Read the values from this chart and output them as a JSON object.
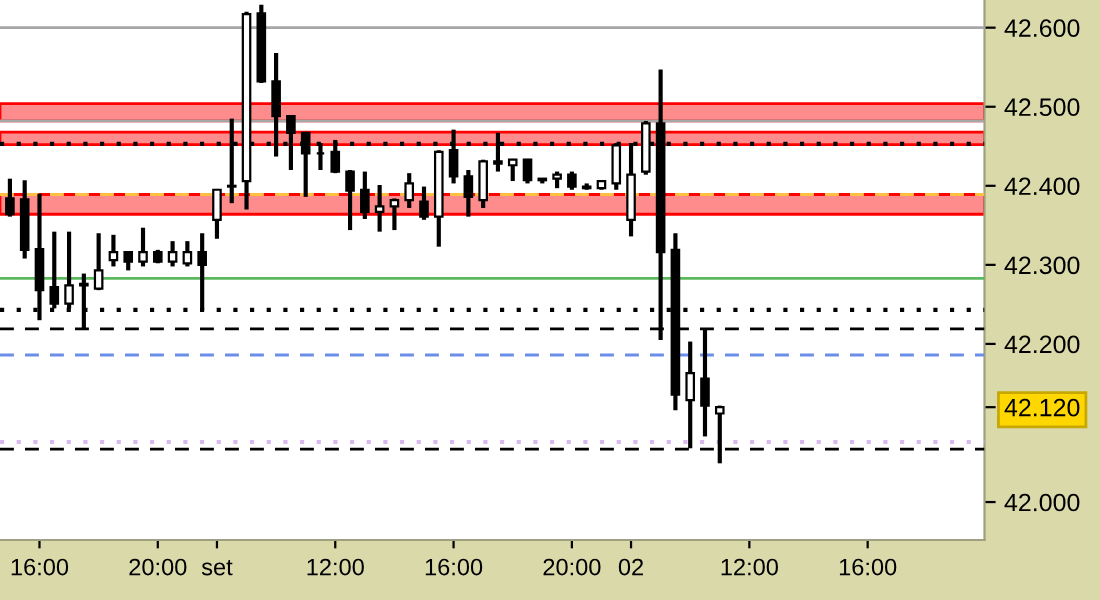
{
  "chart_data": {
    "type": "candlestick",
    "categories": [
      null,
      null,
      "16:00",
      null,
      null,
      null,
      null,
      null,
      null,
      null,
      "20:00",
      null,
      null,
      null,
      "set",
      null,
      null,
      null,
      null,
      null,
      null,
      null,
      "12:00",
      null,
      null,
      null,
      null,
      null,
      null,
      null,
      "16:00",
      null,
      null,
      null,
      null,
      null,
      null,
      null,
      "20:00",
      null,
      null,
      null,
      "02",
      null,
      null,
      null,
      null,
      null,
      null,
      null,
      "12:00",
      null,
      null,
      null,
      null,
      null,
      null,
      null,
      "16:00",
      null,
      null,
      null,
      null,
      null,
      null,
      null
    ],
    "ohlc": [
      [
        42.384,
        42.409,
        42.361,
        42.364
      ],
      [
        42.383,
        42.407,
        42.308,
        42.319
      ],
      [
        42.32,
        42.39,
        42.23,
        42.268
      ],
      [
        42.272,
        42.342,
        42.245,
        42.251
      ],
      [
        42.251,
        42.342,
        42.245,
        42.274
      ],
      [
        42.276,
        42.289,
        42.219,
        42.274
      ],
      [
        42.27,
        42.34,
        42.268,
        42.293
      ],
      [
        42.306,
        42.338,
        42.298,
        42.316
      ],
      [
        42.316,
        42.316,
        42.293,
        42.304
      ],
      [
        42.304,
        42.347,
        42.298,
        42.316
      ],
      [
        42.316,
        42.319,
        42.302,
        42.304
      ],
      [
        42.304,
        42.33,
        42.298,
        42.316
      ],
      [
        42.302,
        42.33,
        42.298,
        42.316
      ],
      [
        42.316,
        42.34,
        42.243,
        42.3
      ],
      [
        42.357,
        42.396,
        42.333,
        42.395
      ],
      [
        42.399,
        42.485,
        42.378,
        42.4
      ],
      [
        42.406,
        42.62,
        42.37,
        42.617
      ],
      [
        42.618,
        42.629,
        42.53,
        42.532
      ],
      [
        42.532,
        42.568,
        42.437,
        42.488
      ],
      [
        42.488,
        42.488,
        42.42,
        42.467
      ],
      [
        42.467,
        42.467,
        42.386,
        42.441
      ],
      [
        42.441,
        42.454,
        42.42,
        42.441
      ],
      [
        42.443,
        42.458,
        42.416,
        42.418
      ],
      [
        42.418,
        42.42,
        42.344,
        42.394
      ],
      [
        42.395,
        42.418,
        42.358,
        42.367
      ],
      [
        42.367,
        42.401,
        42.342,
        42.374
      ],
      [
        42.374,
        42.384,
        42.344,
        42.382
      ],
      [
        42.382,
        42.416,
        42.372,
        42.403
      ],
      [
        42.38,
        42.399,
        42.357,
        42.361
      ],
      [
        42.361,
        42.445,
        42.323,
        42.443
      ],
      [
        42.445,
        42.471,
        42.403,
        42.412
      ],
      [
        42.412,
        42.42,
        42.361,
        42.386
      ],
      [
        42.382,
        42.433,
        42.372,
        42.431
      ],
      [
        42.431,
        42.467,
        42.418,
        42.428
      ],
      [
        42.426,
        42.434,
        42.406,
        42.433
      ],
      [
        42.433,
        42.434,
        42.403,
        42.407
      ],
      [
        42.407,
        42.409,
        42.403,
        42.409
      ],
      [
        42.409,
        42.418,
        42.397,
        42.414
      ],
      [
        42.414,
        42.418,
        42.395,
        42.399
      ],
      [
        42.399,
        42.403,
        42.395,
        42.397
      ],
      [
        42.397,
        42.407,
        42.395,
        42.406
      ],
      [
        42.403,
        42.454,
        42.395,
        42.451
      ],
      [
        42.357,
        42.454,
        42.336,
        42.414
      ],
      [
        42.418,
        42.482,
        42.414,
        42.479
      ],
      [
        42.479,
        42.547,
        42.205,
        42.316
      ],
      [
        42.319,
        42.34,
        42.116,
        42.136
      ],
      [
        42.129,
        42.203,
        42.068,
        42.163
      ],
      [
        42.156,
        42.22,
        42.083,
        42.122
      ],
      [
        42.112,
        42.122,
        42.049,
        42.12
      ],
      null,
      null,
      null,
      null,
      null,
      null,
      null,
      null,
      null,
      null,
      null,
      null,
      null,
      null,
      null,
      null,
      null
    ],
    "ylim": [
      41.952,
      42.635
    ],
    "yticks": [
      {
        "value": 42.0,
        "label": "42.000"
      },
      {
        "value": 42.2,
        "label": "42.200"
      },
      {
        "value": 42.3,
        "label": "42.300"
      },
      {
        "value": 42.4,
        "label": "42.400"
      },
      {
        "value": 42.5,
        "label": "42.500"
      },
      {
        "value": 42.6,
        "label": "42.600"
      },
      {
        "value": 42.12,
        "label": "42.120"
      }
    ],
    "bands": [
      {
        "axis": "y",
        "from": 42.482,
        "to": 42.504,
        "color": "#ff8c8c"
      },
      {
        "axis": "y",
        "from": 42.452,
        "to": 42.468,
        "color": "#ff8c8c"
      },
      {
        "axis": "y",
        "from": 42.364,
        "to": 42.389,
        "color": "#ff8c8c"
      }
    ],
    "ref_lines": [
      {
        "axis": "y",
        "value": 42.6,
        "color": "#a6a6a6",
        "line_style": "solid"
      },
      {
        "axis": "y",
        "value": 42.482,
        "color": "#a6a6a6",
        "line_style": "solid"
      },
      {
        "axis": "y",
        "value": 42.453,
        "color": "#000000",
        "line_style": "dotted"
      },
      {
        "axis": "y",
        "value": 42.389,
        "color": "#ffc040",
        "line_style": "dashed"
      },
      {
        "axis": "y",
        "value": 42.283,
        "color": "#5cb85c",
        "line_style": "solid"
      },
      {
        "axis": "y",
        "value": 42.243,
        "color": "#000000",
        "line_style": "dotted"
      },
      {
        "axis": "y",
        "value": 42.219,
        "color": "#000000",
        "line_style": "dashed"
      },
      {
        "axis": "y",
        "value": 42.186,
        "color": "#6b8fe8",
        "line_style": "dashed"
      },
      {
        "axis": "y",
        "value": 42.076,
        "color": "#d8b8ee",
        "line_style": "dotted"
      },
      {
        "axis": "y",
        "value": 42.067,
        "color": "#000000",
        "line_style": "dashed"
      }
    ],
    "grid": false
  }
}
